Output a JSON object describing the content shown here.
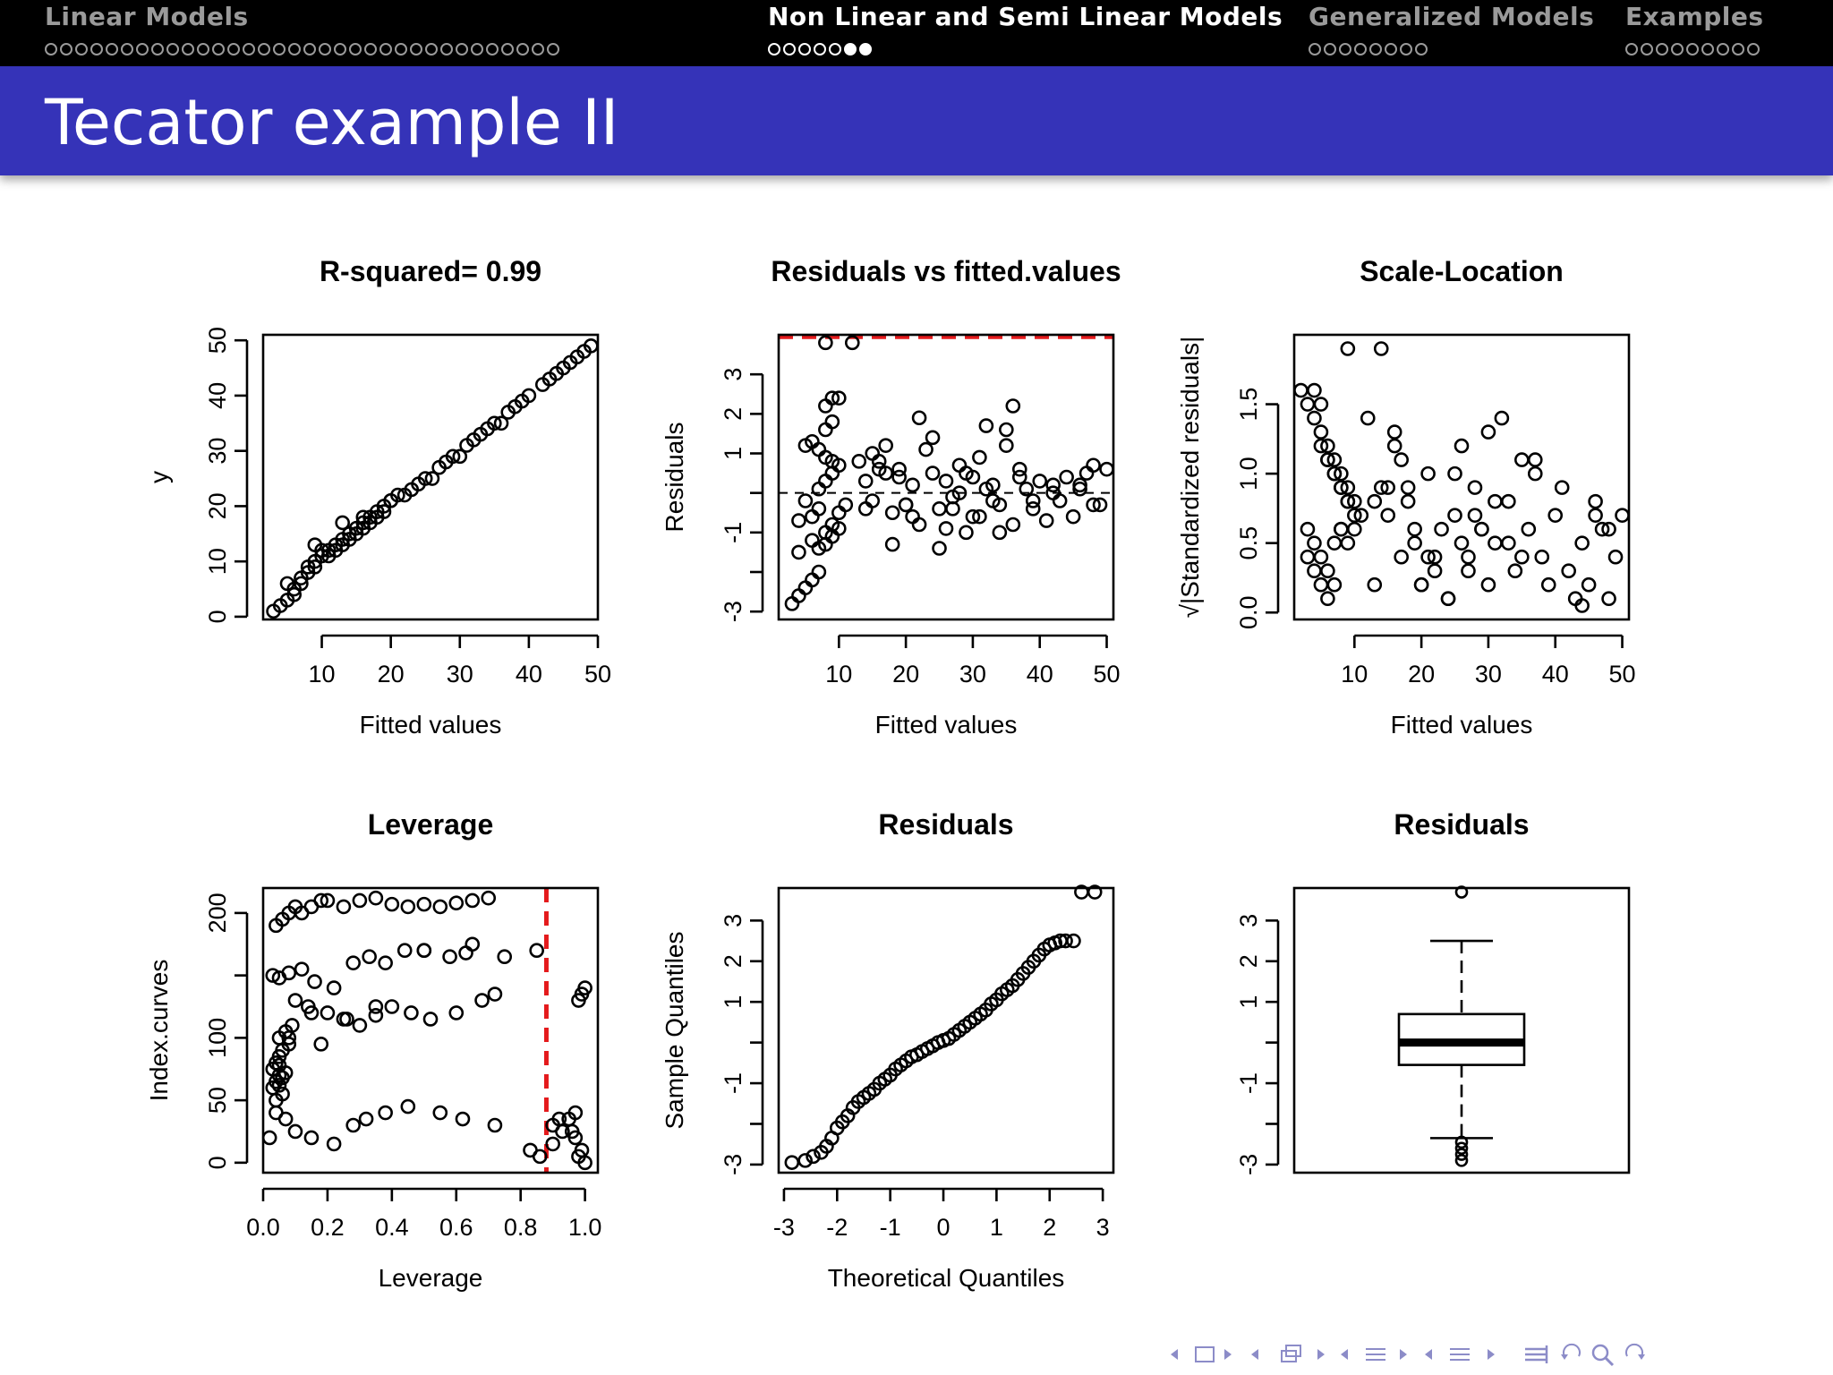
{
  "navigation": {
    "sections": [
      {
        "name": "Linear Models",
        "dots": 34,
        "filled": [],
        "active": false
      },
      {
        "name": "Non Linear and Semi Linear Models",
        "dots": 7,
        "filled": [
          5,
          6
        ],
        "active": true
      },
      {
        "name": "Generalized Models",
        "dots": 8,
        "filled": [],
        "active": false
      },
      {
        "name": "Examples",
        "dots": 9,
        "filled": [],
        "active": false
      }
    ]
  },
  "frame": {
    "title": "Tecator example II"
  },
  "colors": {
    "header_bg": "#000000",
    "title_bg": "#3533b8",
    "reference_line": "#e41a1c",
    "points": "#000000"
  },
  "footer_nav": {
    "icons": [
      "prev-icon",
      "frame-icon",
      "next-icon",
      "prev-icon",
      "subsection-icon",
      "next-icon",
      "prev-icon",
      "section-icon",
      "next-icon",
      "prev-icon",
      "document-icon",
      "next-icon",
      "toc-icon",
      "back-icon",
      "search-icon",
      "forward-icon"
    ]
  },
  "chart_data": [
    {
      "type": "scatter",
      "title": "R-squared= 0.99",
      "xlabel": "Fitted values",
      "ylabel": "y",
      "xlim": [
        1.5,
        50
      ],
      "ylim": [
        -0.5,
        51
      ],
      "xticks": [
        10,
        20,
        30,
        40,
        50
      ],
      "yticks": [
        0,
        10,
        20,
        30,
        40,
        50
      ],
      "x": [
        3,
        4,
        5,
        6,
        6,
        7,
        7,
        8,
        8,
        9,
        9,
        10,
        10,
        11,
        11,
        12,
        12,
        13,
        13,
        14,
        14,
        15,
        15,
        16,
        16,
        17,
        17,
        18,
        18,
        19,
        19,
        20,
        21,
        22,
        23,
        24,
        25,
        26,
        27,
        28,
        29,
        30,
        31,
        32,
        33,
        34,
        35,
        36,
        37,
        38,
        39,
        40,
        42,
        43,
        44,
        45,
        46,
        47,
        48,
        49,
        5,
        9,
        13,
        20,
        16
      ],
      "y": [
        1,
        2,
        3,
        5,
        4,
        6,
        7,
        8,
        9,
        9,
        10,
        11,
        12,
        11,
        12,
        13,
        12,
        14,
        13,
        15,
        14,
        16,
        15,
        17,
        16,
        17,
        18,
        19,
        18,
        19,
        20,
        21,
        22,
        22,
        23,
        24,
        25,
        25,
        27,
        28,
        29,
        29,
        31,
        32,
        33,
        34,
        35,
        35,
        37,
        38,
        39,
        40,
        42,
        43,
        44,
        45,
        46,
        47,
        48,
        49,
        6,
        13,
        17,
        21,
        18
      ]
    },
    {
      "type": "scatter",
      "title": "Residuals vs fitted.values",
      "xlabel": "Fitted values",
      "ylabel": "Residuals",
      "xlim": [
        1,
        51
      ],
      "ylim": [
        -3.2,
        4.0
      ],
      "xticks": [
        10,
        20,
        30,
        40,
        50
      ],
      "yticks": [
        -3,
        -2,
        -1,
        0,
        1,
        2,
        3
      ],
      "ytick_labels": [
        "-3",
        "",
        "-1",
        "",
        "1",
        "2",
        "3"
      ],
      "reference_lines": [
        {
          "axis": "y",
          "value": 0,
          "style": "dashed",
          "color": "#000000"
        },
        {
          "axis": "y",
          "value": 3.95,
          "style": "dashed",
          "color": "#e41a1c"
        }
      ],
      "x": [
        8,
        12,
        3,
        4,
        5,
        6,
        7,
        8,
        9,
        10,
        4,
        6,
        8,
        9,
        10,
        11,
        4,
        5,
        7,
        8,
        9,
        10,
        5,
        6,
        7,
        8,
        9,
        7,
        8,
        9,
        10,
        6,
        7,
        8,
        9,
        14,
        15,
        16,
        17,
        18,
        19,
        20,
        21,
        22,
        23,
        24,
        25,
        26,
        27,
        28,
        29,
        30,
        31,
        32,
        33,
        34,
        35,
        36,
        37,
        38,
        39,
        40,
        41,
        42,
        43,
        44,
        45,
        46,
        47,
        48,
        49,
        50,
        13,
        15,
        17,
        19,
        21,
        25,
        27,
        29,
        31,
        33,
        35,
        37,
        39,
        26,
        30,
        28,
        24,
        22,
        20,
        42,
        46,
        48,
        36,
        34,
        32,
        18,
        16,
        14
      ],
      "y": [
        3.8,
        3.8,
        -2.8,
        -2.6,
        -2.4,
        -2.2,
        -2.0,
        2.2,
        2.4,
        2.4,
        -1.5,
        -1.2,
        -1.0,
        -0.8,
        -0.5,
        -0.3,
        -0.7,
        -0.2,
        0.1,
        0.3,
        0.5,
        0.7,
        1.2,
        1.3,
        1.1,
        0.9,
        0.8,
        -1.4,
        -1.3,
        -1.1,
        -0.9,
        -0.6,
        -0.4,
        1.6,
        1.8,
        0.3,
        -0.2,
        0.8,
        1.2,
        -0.5,
        0.4,
        -0.3,
        0.2,
        -0.8,
        1.1,
        0.5,
        -0.4,
        0.3,
        -0.1,
        0.7,
        -1.0,
        0.4,
        -0.6,
        1.7,
        0.2,
        -0.3,
        1.2,
        -0.8,
        0.6,
        0.1,
        -0.4,
        0.3,
        -0.7,
        0.2,
        -0.2,
        0.4,
        -0.6,
        0.1,
        0.5,
        0.7,
        -0.3,
        0.6,
        0.8,
        1.0,
        0.5,
        0.6,
        -0.6,
        -1.4,
        -0.4,
        0.5,
        0.9,
        -0.2,
        1.6,
        0.4,
        -0.2,
        -0.9,
        -0.6,
        0.0,
        1.4,
        1.9,
        -0.3,
        0.0,
        0.2,
        -0.3,
        2.2,
        -1.0,
        0.1,
        -1.3,
        0.6,
        -0.4
      ]
    },
    {
      "type": "scatter",
      "title": "Scale-Location",
      "xlabel": "Fitted values",
      "ylabel": "√|Standardized residuals|",
      "xlim": [
        1,
        51
      ],
      "ylim": [
        -0.05,
        2.0
      ],
      "xticks": [
        10,
        20,
        30,
        40,
        50
      ],
      "yticks": [
        0.0,
        0.5,
        1.0,
        1.5
      ],
      "ytick_labels": [
        "0.0",
        "0.5",
        "1.0",
        "1.5"
      ],
      "x": [
        9,
        14,
        2,
        3,
        4,
        5,
        6,
        7,
        8,
        9,
        10,
        11,
        4,
        5,
        6,
        7,
        8,
        9,
        10,
        3,
        4,
        5,
        6,
        7,
        8,
        9,
        5,
        6,
        7,
        8,
        9,
        10,
        3,
        4,
        5,
        6,
        7,
        8,
        12,
        13,
        14,
        15,
        16,
        17,
        18,
        19,
        20,
        21,
        22,
        23,
        24,
        25,
        26,
        27,
        28,
        29,
        30,
        31,
        32,
        33,
        34,
        35,
        36,
        37,
        38,
        39,
        40,
        41,
        42,
        43,
        44,
        45,
        46,
        47,
        48,
        49,
        50,
        13,
        15,
        17,
        19,
        21,
        25,
        27,
        29,
        31,
        33,
        35,
        37,
        26,
        28,
        30,
        24,
        22,
        20,
        18,
        16,
        46,
        48,
        44
      ],
      "y": [
        1.9,
        1.9,
        1.6,
        1.5,
        1.4,
        1.3,
        1.2,
        1.1,
        1.0,
        0.9,
        0.8,
        0.7,
        1.6,
        1.5,
        1.1,
        1.0,
        0.9,
        0.8,
        0.7,
        0.6,
        0.5,
        0.4,
        0.3,
        0.2,
        0.6,
        0.5,
        1.2,
        1.1,
        1.0,
        0.9,
        0.8,
        0.6,
        0.4,
        0.3,
        0.2,
        0.1,
        0.5,
        0.6,
        1.4,
        0.2,
        0.9,
        0.7,
        1.3,
        0.4,
        0.8,
        0.5,
        0.2,
        1.0,
        0.3,
        0.6,
        0.1,
        0.7,
        1.2,
        0.4,
        0.9,
        0.6,
        0.2,
        0.5,
        1.4,
        0.8,
        0.3,
        1.1,
        0.6,
        1.0,
        0.4,
        0.2,
        0.7,
        0.9,
        0.3,
        0.1,
        0.5,
        0.2,
        0.8,
        0.6,
        0.1,
        0.4,
        0.7,
        0.8,
        0.9,
        1.1,
        0.6,
        0.4,
        1.0,
        0.3,
        0.6,
        0.8,
        0.5,
        0.4,
        1.1,
        0.5,
        0.7,
        1.3,
        0.1,
        0.4,
        0.2,
        0.9,
        1.2,
        0.7,
        0.6,
        0.05
      ]
    },
    {
      "type": "scatter",
      "title": "Leverage",
      "xlabel": "Leverage",
      "ylabel": "Index.curves",
      "xlim": [
        0,
        1.04
      ],
      "ylim": [
        -8,
        220
      ],
      "xticks": [
        0.0,
        0.2,
        0.4,
        0.6,
        0.8,
        1.0
      ],
      "xtick_labels": [
        "0.0",
        "0.2",
        "0.4",
        "0.6",
        "0.8",
        "1.0"
      ],
      "yticks": [
        0,
        50,
        100,
        150,
        200
      ],
      "ytick_labels": [
        "0",
        "50",
        "100",
        "",
        "200"
      ],
      "reference_lines": [
        {
          "axis": "x",
          "value": 0.88,
          "style": "dashed",
          "color": "#e41a1c"
        }
      ],
      "x": [
        0.03,
        0.04,
        0.05,
        0.03,
        0.04,
        0.05,
        0.06,
        0.04,
        0.05,
        0.06,
        0.07,
        0.05,
        0.06,
        0.08,
        0.05,
        0.07,
        0.09,
        0.04,
        0.06,
        0.08,
        0.1,
        0.12,
        0.15,
        0.18,
        0.2,
        0.25,
        0.3,
        0.35,
        0.4,
        0.45,
        0.5,
        0.55,
        0.6,
        0.65,
        0.7,
        0.03,
        0.05,
        0.08,
        0.12,
        0.16,
        0.22,
        0.28,
        0.33,
        0.38,
        0.44,
        0.5,
        0.58,
        0.63,
        0.75,
        0.85,
        0.1,
        0.14,
        0.2,
        0.26,
        0.3,
        0.35,
        0.4,
        0.46,
        0.52,
        0.6,
        0.68,
        0.72,
        0.04,
        0.07,
        0.1,
        0.15,
        0.22,
        0.28,
        0.32,
        0.38,
        0.45,
        0.55,
        0.62,
        0.72,
        0.83,
        0.86,
        0.9,
        0.93,
        0.97,
        0.99,
        1.0,
        0.98,
        0.97,
        0.95,
        0.98,
        0.99,
        1.0,
        0.9,
        0.92,
        0.96,
        0.15,
        0.25,
        0.35,
        0.5,
        0.65,
        0.02,
        0.08,
        0.18
      ],
      "y": [
        60,
        65,
        70,
        75,
        80,
        85,
        55,
        50,
        62,
        68,
        72,
        78,
        90,
        95,
        100,
        105,
        110,
        190,
        195,
        200,
        205,
        200,
        205,
        210,
        210,
        205,
        210,
        212,
        207,
        205,
        207,
        205,
        208,
        210,
        212,
        150,
        148,
        152,
        155,
        145,
        140,
        160,
        165,
        160,
        170,
        170,
        165,
        168,
        165,
        170,
        130,
        125,
        120,
        115,
        110,
        118,
        125,
        120,
        115,
        120,
        130,
        135,
        40,
        35,
        25,
        20,
        15,
        30,
        35,
        40,
        45,
        40,
        35,
        30,
        10,
        5,
        15,
        25,
        20,
        10,
        0,
        5,
        40,
        35,
        130,
        135,
        140,
        30,
        35,
        25,
        120,
        115,
        125,
        170,
        175,
        20,
        100,
        95
      ]
    },
    {
      "type": "scatter",
      "title": "Residuals",
      "xlabel": "Theoretical Quantiles",
      "ylabel": "Sample Quantiles",
      "xlim": [
        -3.1,
        3.2
      ],
      "ylim": [
        -3.2,
        3.8
      ],
      "xticks": [
        -3,
        -2,
        -1,
        0,
        1,
        2,
        3
      ],
      "yticks": [
        -3,
        -2,
        -1,
        0,
        1,
        2,
        3
      ],
      "ytick_labels": [
        "-3",
        "",
        "-1",
        "",
        "1",
        "2",
        "3"
      ],
      "x": [
        -2.85,
        -2.6,
        -2.45,
        -2.3,
        -2.2,
        -2.1,
        -2.0,
        -1.9,
        -1.8,
        -1.7,
        -1.6,
        -1.5,
        -1.4,
        -1.3,
        -1.2,
        -1.1,
        -1.0,
        -0.9,
        -0.8,
        -0.7,
        -0.6,
        -0.5,
        -0.4,
        -0.3,
        -0.2,
        -0.1,
        0.0,
        0.1,
        0.2,
        0.3,
        0.4,
        0.5,
        0.6,
        0.7,
        0.8,
        0.9,
        1.0,
        1.1,
        1.2,
        1.3,
        1.4,
        1.5,
        1.6,
        1.7,
        1.8,
        1.9,
        2.0,
        2.1,
        2.2,
        2.3,
        2.45,
        2.6,
        2.85
      ],
      "y": [
        -2.95,
        -2.9,
        -2.8,
        -2.7,
        -2.55,
        -2.35,
        -2.1,
        -1.95,
        -1.8,
        -1.6,
        -1.45,
        -1.35,
        -1.25,
        -1.15,
        -1.0,
        -0.9,
        -0.8,
        -0.65,
        -0.55,
        -0.45,
        -0.35,
        -0.3,
        -0.22,
        -0.15,
        -0.08,
        0.0,
        0.05,
        0.1,
        0.2,
        0.3,
        0.4,
        0.5,
        0.6,
        0.7,
        0.8,
        0.95,
        1.05,
        1.2,
        1.3,
        1.4,
        1.55,
        1.7,
        1.85,
        2.0,
        2.15,
        2.3,
        2.4,
        2.45,
        2.5,
        2.5,
        2.5,
        3.7,
        3.7
      ]
    },
    {
      "type": "box",
      "title": "Residuals",
      "ylim": [
        -3.2,
        3.8
      ],
      "yticks": [
        -3,
        -2,
        -1,
        0,
        1,
        2,
        3
      ],
      "ytick_labels": [
        "-3",
        "",
        "-1",
        "",
        "1",
        "2",
        "3"
      ],
      "box": {
        "q1": -0.55,
        "median": 0.0,
        "q3": 0.7,
        "whisker_low": -2.35,
        "whisker_high": 2.5
      },
      "outliers": [
        3.7,
        -2.45,
        -2.6,
        -2.75,
        -2.9
      ]
    }
  ]
}
